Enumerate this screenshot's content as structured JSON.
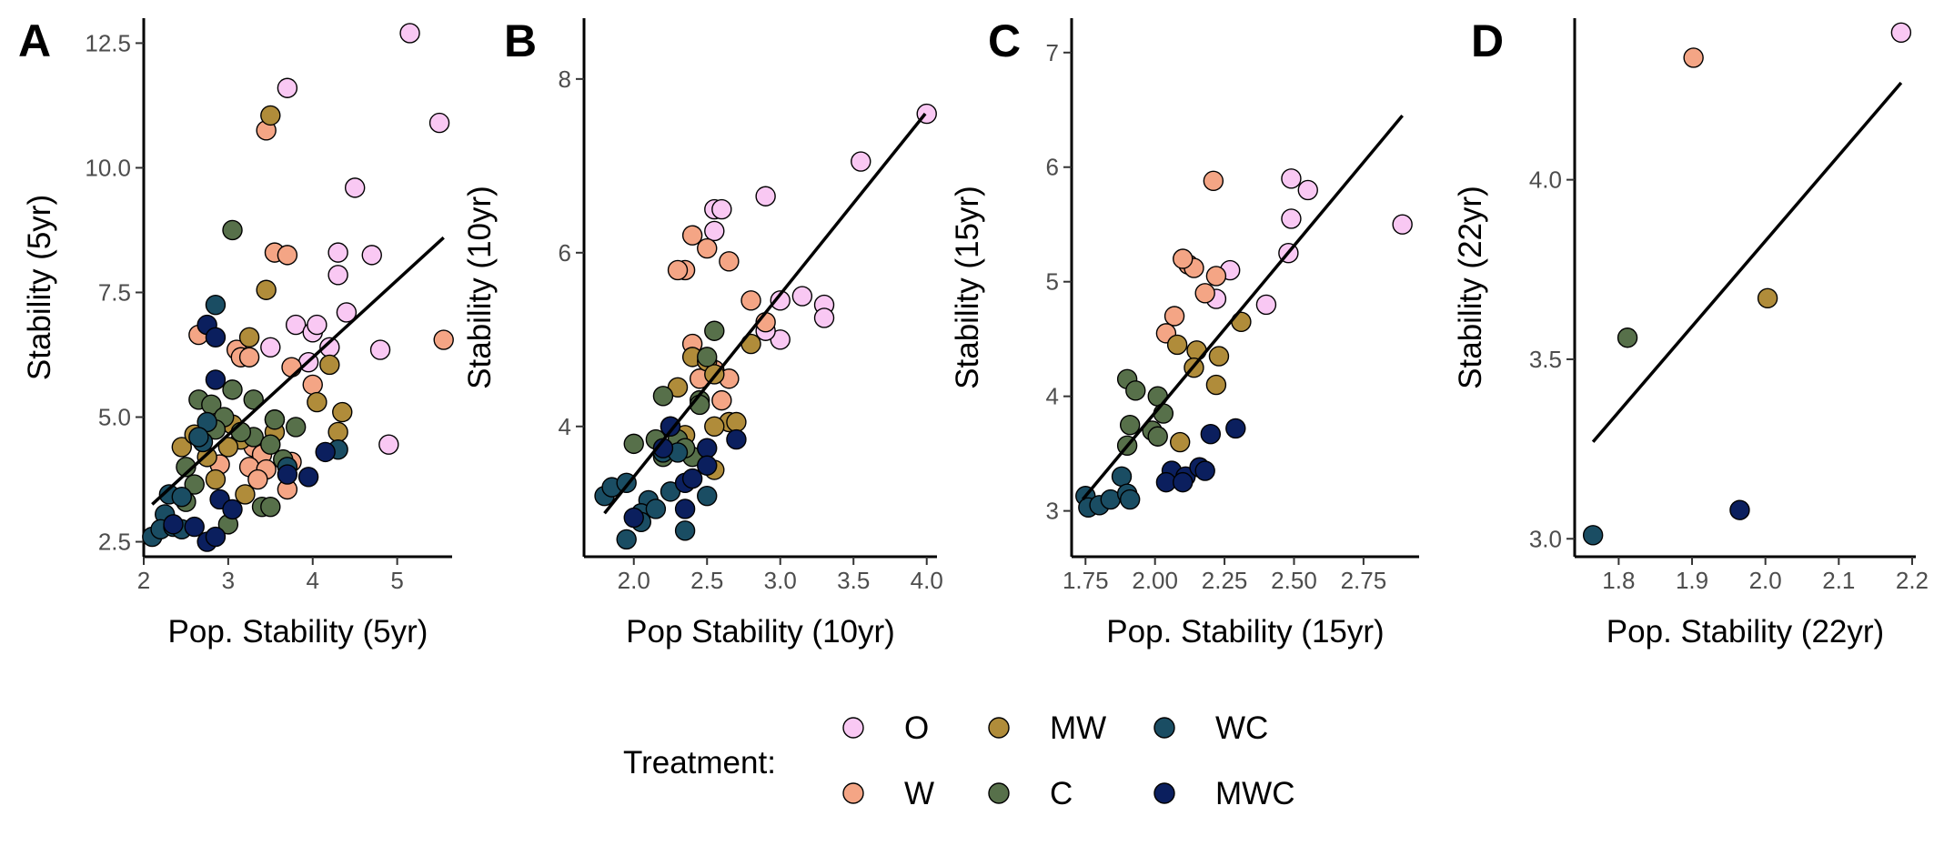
{
  "colors": {
    "O": "#f9c8f3",
    "W": "#f4a585",
    "MW": "#b08c3a",
    "C": "#57704a",
    "WC": "#1a4d63",
    "MWC": "#0b1f5e",
    "fit_line": "#000000",
    "point_stroke": "#000000"
  },
  "legend": {
    "title": "Treatment:",
    "entries": [
      "O",
      "MW",
      "WC",
      "W",
      "C",
      "MWC"
    ]
  },
  "chart_data": [
    {
      "type": "scatter",
      "tag": "A",
      "xlabel": "Pop. Stability (5yr)",
      "ylabel": "Stability (5yr)",
      "xlim": [
        2.0,
        5.65
      ],
      "ylim": [
        2.2,
        13.0
      ],
      "xticks": [
        2,
        3,
        4,
        5
      ],
      "xtick_labels": [
        "2",
        "3",
        "4",
        "5"
      ],
      "yticks": [
        2.5,
        5.0,
        7.5,
        10.0,
        12.5
      ],
      "ytick_labels": [
        "2.5",
        "5.0",
        "7.5",
        "10.0",
        "12.5"
      ],
      "fit": [
        [
          2.1,
          3.25
        ],
        [
          5.55,
          8.6
        ]
      ],
      "series": [
        {
          "name": "O",
          "points": [
            [
              5.15,
              12.7
            ],
            [
              3.7,
              11.6
            ],
            [
              5.5,
              10.9
            ],
            [
              4.5,
              9.6
            ],
            [
              4.3,
              8.3
            ],
            [
              4.7,
              8.25
            ],
            [
              4.3,
              7.85
            ],
            [
              4.4,
              7.1
            ],
            [
              3.8,
              6.85
            ],
            [
              4.0,
              6.7
            ],
            [
              4.05,
              6.85
            ],
            [
              4.8,
              6.35
            ],
            [
              4.2,
              6.4
            ],
            [
              3.95,
              6.1
            ],
            [
              4.9,
              4.45
            ],
            [
              3.5,
              6.4
            ]
          ]
        },
        {
          "name": "W",
          "points": [
            [
              3.45,
              10.75
            ],
            [
              3.55,
              8.3
            ],
            [
              3.7,
              8.25
            ],
            [
              5.55,
              6.55
            ],
            [
              2.65,
              6.65
            ],
            [
              3.1,
              6.35
            ],
            [
              3.15,
              6.2
            ],
            [
              3.25,
              6.2
            ],
            [
              3.75,
              6.0
            ],
            [
              4.0,
              5.65
            ],
            [
              3.55,
              4.95
            ],
            [
              3.3,
              4.4
            ],
            [
              3.4,
              4.25
            ],
            [
              3.25,
              4.0
            ],
            [
              3.45,
              3.95
            ],
            [
              3.75,
              4.1
            ],
            [
              3.35,
              3.75
            ],
            [
              3.7,
              3.55
            ],
            [
              2.9,
              4.05
            ]
          ]
        },
        {
          "name": "MW",
          "points": [
            [
              3.5,
              11.05
            ],
            [
              3.45,
              7.55
            ],
            [
              3.25,
              6.6
            ],
            [
              4.2,
              6.05
            ],
            [
              4.05,
              5.3
            ],
            [
              4.35,
              5.1
            ],
            [
              4.3,
              4.7
            ],
            [
              2.45,
              4.4
            ],
            [
              3.05,
              4.85
            ],
            [
              2.75,
              4.2
            ],
            [
              3.15,
              4.55
            ],
            [
              2.85,
              3.75
            ],
            [
              3.55,
              4.7
            ],
            [
              3.0,
              4.4
            ],
            [
              2.6,
              4.65
            ],
            [
              3.2,
              3.45
            ]
          ]
        },
        {
          "name": "C",
          "points": [
            [
              3.05,
              8.75
            ],
            [
              3.05,
              5.55
            ],
            [
              2.65,
              5.35
            ],
            [
              2.8,
              5.25
            ],
            [
              3.3,
              5.35
            ],
            [
              2.95,
              5.0
            ],
            [
              3.55,
              4.95
            ],
            [
              3.3,
              4.6
            ],
            [
              3.15,
              4.7
            ],
            [
              3.8,
              4.8
            ],
            [
              2.85,
              4.75
            ],
            [
              3.5,
              4.45
            ],
            [
              2.5,
              4.0
            ],
            [
              2.6,
              3.65
            ],
            [
              3.4,
              3.2
            ],
            [
              3.5,
              3.2
            ],
            [
              3.0,
              2.85
            ],
            [
              3.65,
              4.15
            ],
            [
              2.5,
              3.3
            ]
          ]
        },
        {
          "name": "WC",
          "points": [
            [
              2.85,
              7.25
            ],
            [
              2.75,
              4.9
            ],
            [
              2.7,
              4.5
            ],
            [
              2.65,
              4.6
            ],
            [
              2.3,
              3.45
            ],
            [
              2.45,
              3.4
            ],
            [
              2.25,
              3.05
            ],
            [
              2.1,
              2.6
            ],
            [
              2.2,
              2.75
            ],
            [
              2.35,
              2.8
            ],
            [
              2.45,
              2.75
            ],
            [
              3.7,
              4.0
            ],
            [
              4.3,
              4.35
            ]
          ]
        },
        {
          "name": "MWC",
          "points": [
            [
              2.75,
              6.85
            ],
            [
              2.85,
              6.6
            ],
            [
              2.85,
              5.75
            ],
            [
              3.7,
              3.85
            ],
            [
              3.95,
              3.8
            ],
            [
              4.15,
              4.3
            ],
            [
              2.9,
              3.35
            ],
            [
              3.05,
              3.15
            ],
            [
              2.6,
              2.8
            ],
            [
              2.75,
              2.5
            ],
            [
              2.85,
              2.6
            ],
            [
              2.35,
              2.85
            ]
          ]
        }
      ]
    },
    {
      "type": "scatter",
      "tag": "B",
      "xlabel": "Pop Stability (10yr)",
      "ylabel": "Stability (10yr)",
      "xlim": [
        1.66,
        4.07
      ],
      "ylim": [
        2.5,
        8.7
      ],
      "xticks": [
        2.0,
        2.5,
        3.0,
        3.5,
        4.0
      ],
      "xtick_labels": [
        "2.0",
        "2.5",
        "3.0",
        "3.5",
        "4.0"
      ],
      "yticks": [
        4,
        6,
        8
      ],
      "ytick_labels": [
        "4",
        "6",
        "8"
      ],
      "fit": [
        [
          1.8,
          3.0
        ],
        [
          3.99,
          7.6
        ]
      ],
      "series": [
        {
          "name": "O",
          "points": [
            [
              4.0,
              7.6
            ],
            [
              3.55,
              7.05
            ],
            [
              2.9,
              6.65
            ],
            [
              2.55,
              6.5
            ],
            [
              2.6,
              6.5
            ],
            [
              2.55,
              6.25
            ],
            [
              3.15,
              5.5
            ],
            [
              3.3,
              5.4
            ],
            [
              3.3,
              5.25
            ],
            [
              3.0,
              5.45
            ],
            [
              3.0,
              5.0
            ],
            [
              2.9,
              5.1
            ]
          ]
        },
        {
          "name": "W",
          "points": [
            [
              2.4,
              6.2
            ],
            [
              2.35,
              5.8
            ],
            [
              2.3,
              5.8
            ],
            [
              2.5,
              6.05
            ],
            [
              2.65,
              5.9
            ],
            [
              2.8,
              5.45
            ],
            [
              2.9,
              5.2
            ],
            [
              2.4,
              4.95
            ],
            [
              2.55,
              4.65
            ],
            [
              2.65,
              4.55
            ],
            [
              2.45,
              4.55
            ],
            [
              2.6,
              4.3
            ]
          ]
        },
        {
          "name": "MW",
          "points": [
            [
              2.4,
              4.8
            ],
            [
              2.5,
              4.75
            ],
            [
              2.55,
              4.6
            ],
            [
              2.8,
              4.95
            ],
            [
              2.65,
              4.05
            ],
            [
              2.7,
              4.05
            ],
            [
              2.55,
              4.0
            ],
            [
              2.3,
              4.45
            ],
            [
              2.35,
              3.9
            ],
            [
              2.55,
              3.5
            ]
          ]
        },
        {
          "name": "C",
          "points": [
            [
              2.55,
              5.1
            ],
            [
              2.5,
              4.8
            ],
            [
              2.45,
              4.3
            ],
            [
              2.2,
              4.35
            ],
            [
              2.45,
              4.25
            ],
            [
              2.25,
              4.0
            ],
            [
              2.3,
              3.85
            ],
            [
              2.0,
              3.8
            ],
            [
              2.15,
              3.85
            ],
            [
              2.4,
              3.65
            ],
            [
              2.35,
              3.75
            ],
            [
              2.2,
              3.65
            ]
          ]
        },
        {
          "name": "WC",
          "points": [
            [
              1.8,
              3.2
            ],
            [
              1.85,
              3.3
            ],
            [
              1.95,
              3.35
            ],
            [
              2.1,
              3.15
            ],
            [
              2.2,
              3.7
            ],
            [
              2.25,
              3.25
            ],
            [
              2.05,
              3.0
            ],
            [
              2.15,
              3.05
            ],
            [
              2.5,
              3.2
            ],
            [
              2.35,
              2.8
            ],
            [
              1.95,
              2.7
            ],
            [
              2.05,
              2.9
            ],
            [
              2.3,
              3.7
            ]
          ]
        },
        {
          "name": "MWC",
          "points": [
            [
              2.25,
              4.0
            ],
            [
              2.5,
              3.75
            ],
            [
              2.7,
              3.85
            ],
            [
              2.35,
              3.35
            ],
            [
              2.5,
              3.55
            ],
            [
              2.4,
              3.4
            ],
            [
              2.2,
              3.75
            ],
            [
              2.35,
              3.05
            ],
            [
              2.0,
              2.95
            ]
          ]
        }
      ]
    },
    {
      "type": "scatter",
      "tag": "C",
      "xlabel": "Pop. Stability (15yr)",
      "ylabel": "Stability (15yr)",
      "xlim": [
        1.7,
        2.95
      ],
      "ylim": [
        2.6,
        7.3
      ],
      "xticks": [
        1.75,
        2.0,
        2.25,
        2.5,
        2.75
      ],
      "xtick_labels": [
        "1.75",
        "2.00",
        "2.25",
        "2.50",
        "2.75"
      ],
      "yticks": [
        3,
        4,
        5,
        6,
        7
      ],
      "ytick_labels": [
        "3",
        "4",
        "5",
        "6",
        "7"
      ],
      "fit": [
        [
          1.74,
          3.1
        ],
        [
          2.89,
          6.45
        ]
      ],
      "series": [
        {
          "name": "O",
          "points": [
            [
              2.49,
              5.9
            ],
            [
              2.55,
              5.8
            ],
            [
              2.89,
              5.5
            ],
            [
              2.49,
              5.55
            ],
            [
              2.48,
              5.25
            ],
            [
              2.27,
              5.1
            ],
            [
              2.4,
              4.8
            ],
            [
              2.22,
              4.85
            ]
          ]
        },
        {
          "name": "W",
          "points": [
            [
              2.21,
              5.88
            ],
            [
              2.12,
              5.15
            ],
            [
              2.14,
              5.12
            ],
            [
              2.1,
              5.2
            ],
            [
              2.22,
              5.05
            ],
            [
              2.18,
              4.9
            ],
            [
              2.07,
              4.7
            ],
            [
              2.04,
              4.55
            ]
          ]
        },
        {
          "name": "MW",
          "points": [
            [
              2.08,
              4.45
            ],
            [
              2.15,
              4.4
            ],
            [
              2.31,
              4.65
            ],
            [
              2.14,
              4.25
            ],
            [
              2.22,
              4.1
            ],
            [
              2.23,
              4.35
            ],
            [
              2.09,
              3.6
            ]
          ]
        },
        {
          "name": "C",
          "points": [
            [
              1.9,
              4.15
            ],
            [
              2.01,
              4.0
            ],
            [
              1.93,
              4.05
            ],
            [
              2.03,
              3.85
            ],
            [
              1.99,
              3.7
            ],
            [
              1.91,
              3.75
            ],
            [
              2.01,
              3.65
            ],
            [
              1.9,
              3.57
            ]
          ]
        },
        {
          "name": "WC",
          "points": [
            [
              1.75,
              3.13
            ],
            [
              1.76,
              3.03
            ],
            [
              1.8,
              3.05
            ],
            [
              1.84,
              3.1
            ],
            [
              1.88,
              3.3
            ],
            [
              1.9,
              3.15
            ],
            [
              1.91,
              3.1
            ]
          ]
        },
        {
          "name": "MWC",
          "points": [
            [
              2.06,
              3.35
            ],
            [
              2.11,
              3.3
            ],
            [
              2.16,
              3.38
            ],
            [
              2.18,
              3.35
            ],
            [
              2.04,
              3.25
            ],
            [
              2.1,
              3.25
            ],
            [
              2.2,
              3.67
            ],
            [
              2.29,
              3.72
            ]
          ]
        }
      ]
    },
    {
      "type": "scatter",
      "tag": "D",
      "xlabel": "Pop. Stability (22yr)",
      "ylabel": "Stability (22yr)",
      "xlim": [
        1.74,
        2.205
      ],
      "ylim": [
        2.95,
        4.45
      ],
      "xticks": [
        1.8,
        1.9,
        2.0,
        2.1,
        2.2
      ],
      "xtick_labels": [
        "1.8",
        "1.9",
        "2.0",
        "2.1",
        "2.2"
      ],
      "yticks": [
        3.0,
        3.5,
        4.0
      ],
      "ytick_labels": [
        "3.0",
        "3.5",
        "4.0"
      ],
      "fit": [
        [
          1.765,
          3.27
        ],
        [
          2.185,
          4.27
        ]
      ],
      "series": [
        {
          "name": "O",
          "points": [
            [
              2.185,
              4.41
            ]
          ]
        },
        {
          "name": "W",
          "points": [
            [
              1.902,
              4.34
            ]
          ]
        },
        {
          "name": "MW",
          "points": [
            [
              2.003,
              3.67
            ]
          ]
        },
        {
          "name": "C",
          "points": [
            [
              1.812,
              3.56
            ]
          ]
        },
        {
          "name": "WC",
          "points": [
            [
              1.765,
              3.01
            ]
          ]
        },
        {
          "name": "MWC",
          "points": [
            [
              1.965,
              3.08
            ]
          ]
        }
      ]
    }
  ]
}
